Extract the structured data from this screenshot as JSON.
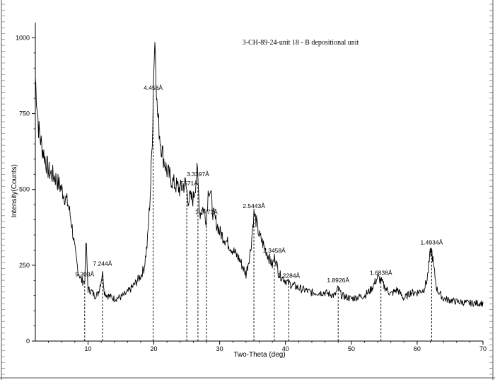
{
  "chart_data": {
    "type": "line",
    "title": "3-CH-89-24-unit 18 - B depositional unit",
    "xlabel": "Two-Theta (deg)",
    "ylabel": "Intensity(Counts)",
    "xlim": [
      2,
      70
    ],
    "ylim": [
      0,
      1050
    ],
    "x_ticks": [
      10,
      20,
      30,
      40,
      50,
      60,
      70
    ],
    "y_ticks": [
      0,
      250,
      500,
      750,
      1000
    ],
    "x_tick_labels": [
      "10",
      "20",
      "30",
      "40",
      "50",
      "60",
      "70"
    ],
    "y_tick_labels": [
      "0",
      "250",
      "500",
      "750",
      "1000"
    ],
    "grid": false,
    "legend": "none",
    "line_color": "#000000",
    "series": [
      {
        "x": [
          2,
          2.5,
          3,
          3.5,
          4,
          5,
          6,
          7,
          7.5,
          8,
          8.5,
          9,
          9.5,
          9.7,
          10,
          10.5,
          11,
          11.5,
          12,
          12.2,
          12.5,
          13,
          14,
          15,
          16,
          17,
          18,
          18.5,
          19,
          19.5,
          19.8,
          20,
          20.2,
          20.5,
          21,
          21.5,
          22,
          23,
          24,
          24.8,
          25.2,
          26,
          26.6,
          27,
          27.5,
          28,
          28.3,
          28.6,
          29,
          30,
          31,
          32,
          33,
          34,
          34.7,
          35.2,
          35.5,
          36,
          37,
          38,
          38.4,
          39,
          40,
          40.5,
          41,
          42,
          44,
          46,
          47.5,
          48,
          48.5,
          50,
          52,
          53,
          54,
          54.5,
          55,
          56,
          57,
          58,
          59,
          60,
          61,
          61.5,
          62,
          62.2,
          62.6,
          63,
          64,
          66,
          68,
          70
        ],
        "y": [
          870,
          700,
          640,
          600,
          560,
          540,
          500,
          450,
          390,
          300,
          230,
          200,
          195,
          340,
          170,
          165,
          150,
          155,
          200,
          230,
          160,
          150,
          140,
          145,
          160,
          185,
          215,
          240,
          320,
          500,
          700,
          920,
          1000,
          760,
          660,
          600,
          560,
          520,
          500,
          520,
          470,
          470,
          560,
          420,
          440,
          400,
          510,
          490,
          420,
          360,
          330,
          300,
          270,
          220,
          300,
          420,
          400,
          350,
          300,
          250,
          280,
          220,
          200,
          190,
          185,
          175,
          160,
          160,
          150,
          175,
          150,
          140,
          150,
          170,
          210,
          200,
          180,
          155,
          170,
          140,
          160,
          160,
          170,
          200,
          290,
          300,
          230,
          170,
          140,
          130,
          125,
          125
        ]
      }
    ],
    "peak_markers": [
      {
        "x": 9.5,
        "label": "9.303Å"
      },
      {
        "x": 12.2,
        "label": "7.244Å"
      },
      {
        "x": 19.9,
        "label": "4.458Å"
      },
      {
        "x": 25.0,
        "label": "3.5571Å"
      },
      {
        "x": 26.7,
        "label": "3.3397Å"
      },
      {
        "x": 28.0,
        "label": "3.1773Å"
      },
      {
        "x": 35.2,
        "label": "2.5443Å"
      },
      {
        "x": 38.3,
        "label": "2.3458Å"
      },
      {
        "x": 40.5,
        "label": "2.2284Å"
      },
      {
        "x": 48.0,
        "label": "1.8926Å"
      },
      {
        "x": 54.5,
        "label": "1.6838Å"
      },
      {
        "x": 62.2,
        "label": "1.4934Å"
      }
    ]
  }
}
